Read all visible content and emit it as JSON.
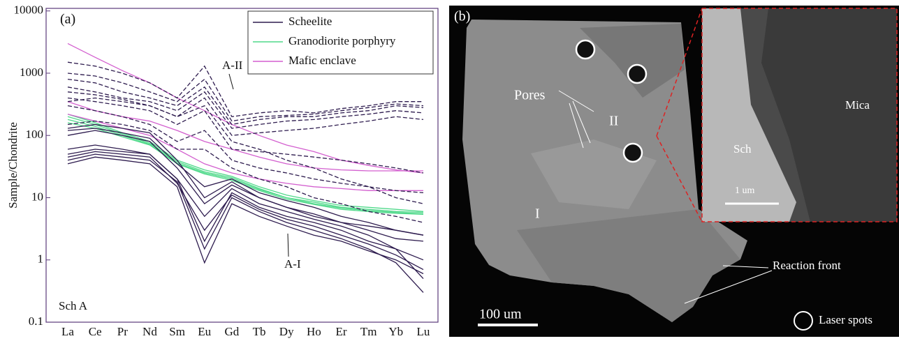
{
  "chart_data": {
    "type": "line",
    "log_scale": true,
    "panel_label": "(a)",
    "y_label": "Sample/Chondrite",
    "annotations": [
      "A-II",
      "A-I",
      "Sch A"
    ],
    "categories": [
      "La",
      "Ce",
      "Pr",
      "Nd",
      "Sm",
      "Eu",
      "Gd",
      "Tb",
      "Dy",
      "Ho",
      "Er",
      "Tm",
      "Yb",
      "Lu"
    ],
    "ylim": [
      0.1,
      11000
    ],
    "yticks": [
      10000,
      1000,
      100,
      10,
      1,
      0.1
    ],
    "legend": "upper right",
    "series": [
      {
        "name": "Scheelite",
        "color": "#2d1b4e",
        "dashed_lines": [
          [
            1500,
            1300,
            1000,
            700,
            400,
            1300,
            200,
            230,
            250,
            230,
            270,
            300,
            350,
            350
          ],
          [
            1000,
            900,
            700,
            500,
            350,
            800,
            170,
            200,
            210,
            220,
            250,
            280,
            320,
            300
          ],
          [
            800,
            700,
            500,
            400,
            300,
            600,
            150,
            180,
            200,
            200,
            230,
            250,
            300,
            280
          ],
          [
            600,
            500,
            400,
            350,
            250,
            500,
            130,
            150,
            170,
            180,
            200,
            220,
            250,
            230
          ],
          [
            500,
            450,
            380,
            300,
            200,
            400,
            100,
            110,
            120,
            130,
            150,
            170,
            200,
            180
          ],
          [
            400,
            350,
            300,
            250,
            150,
            250,
            60,
            55,
            50,
            45,
            40,
            35,
            30,
            25
          ],
          [
            350,
            400,
            350,
            300,
            200,
            300,
            80,
            60,
            40,
            30,
            20,
            15,
            10,
            8
          ],
          [
            300,
            250,
            200,
            150,
            80,
            120,
            40,
            30,
            25,
            20,
            17,
            15,
            13,
            12
          ],
          [
            150,
            170,
            150,
            120,
            60,
            60,
            30,
            20,
            15,
            10,
            8,
            6,
            5,
            4
          ]
        ],
        "lines": [
          [
            130,
            150,
            130,
            110,
            40,
            10,
            18,
            10,
            7,
            5,
            4,
            3.5,
            3,
            2.5
          ],
          [
            120,
            130,
            110,
            90,
            35,
            15,
            20,
            12,
            9,
            7,
            5,
            4,
            3,
            2.5
          ],
          [
            100,
            120,
            100,
            80,
            30,
            8,
            16,
            10,
            7,
            5.5,
            4,
            3,
            2.2,
            2
          ],
          [
            60,
            70,
            60,
            50,
            20,
            5,
            14,
            8,
            6,
            4.5,
            3.5,
            2.5,
            1.5,
            0.5
          ],
          [
            50,
            60,
            55,
            50,
            20,
            2,
            12,
            7,
            5,
            4,
            3,
            2,
            1.5,
            1
          ],
          [
            45,
            55,
            50,
            45,
            17,
            3,
            11,
            6.5,
            4.5,
            3.5,
            2.5,
            1.8,
            1.2,
            0.7
          ],
          [
            40,
            50,
            45,
            40,
            18,
            1.5,
            10,
            6,
            4,
            3,
            2.2,
            1.5,
            0.9,
            0.3
          ],
          [
            35,
            45,
            40,
            35,
            15,
            0.9,
            8,
            5,
            3.5,
            2.5,
            2,
            1.4,
            1,
            0.6
          ]
        ]
      },
      {
        "name": "Granodiorite porphyry",
        "color": "#4fd98a",
        "lines": [
          [
            220,
            160,
            110,
            80,
            40,
            28,
            22,
            15,
            11,
            9,
            7.5,
            7,
            6.5,
            6
          ],
          [
            200,
            150,
            105,
            75,
            38,
            26,
            21,
            14,
            10,
            8.5,
            7,
            6.5,
            6,
            5.8
          ],
          [
            180,
            140,
            100,
            72,
            36,
            25,
            20,
            13.5,
            10,
            8,
            6.8,
            6.2,
            5.8,
            5.5
          ],
          [
            160,
            130,
            95,
            70,
            35,
            24,
            19,
            13,
            9.5,
            7.8,
            6.5,
            6,
            5.6,
            5.4
          ]
        ]
      },
      {
        "name": "Mafic enclave",
        "color": "#d35fcf",
        "lines": [
          [
            3000,
            1800,
            1100,
            700,
            400,
            250,
            150,
            100,
            70,
            55,
            40,
            33,
            28,
            25
          ],
          [
            350,
            250,
            200,
            170,
            120,
            80,
            60,
            45,
            35,
            30,
            28,
            27,
            27,
            27
          ],
          [
            220,
            170,
            130,
            100,
            60,
            35,
            25,
            20,
            17,
            15,
            14,
            13,
            13,
            13
          ]
        ]
      }
    ]
  },
  "panel_b": {
    "panel_label": "(b)",
    "pores": "Pores",
    "zone_2": "II",
    "zone_1": "I",
    "inset_sch": "Sch",
    "inset_mica": "Mica",
    "inset_scale": "1 um",
    "scale": "100 um",
    "reaction_front": "Reaction front",
    "laser_spots": "Laser spots"
  }
}
